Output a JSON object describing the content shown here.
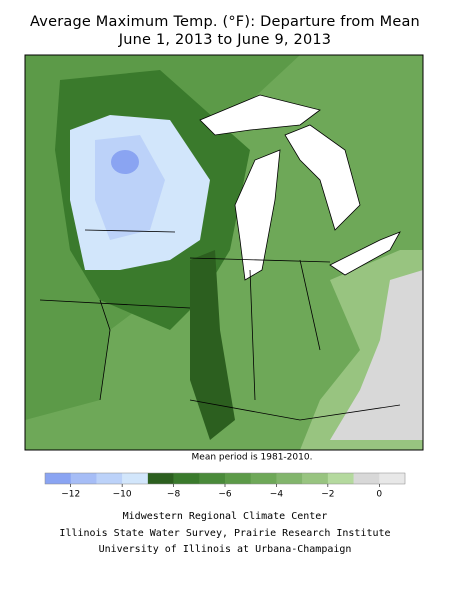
{
  "title": [
    "Average Maximum Temp. (°F): Departure from Mean",
    "June 1, 2013 to June 9, 2013"
  ],
  "note": "Mean period is 1981-2010.",
  "colorbar": {
    "range": [
      -13,
      1
    ],
    "colors": [
      "#8aa4f2",
      "#a6bdf6",
      "#bcd2f9",
      "#d2e6fb",
      "#2c5f1f",
      "#3a7a2c",
      "#4a8a3a",
      "#5c9a48",
      "#6ea858",
      "#82b56c",
      "#98c480",
      "#b4d99e",
      "#d8d8d8",
      "#e8e8e8"
    ],
    "ticks": [
      {
        "value": -12,
        "label": "−12"
      },
      {
        "value": -10,
        "label": "−10"
      },
      {
        "value": -8,
        "label": "−8"
      },
      {
        "value": -6,
        "label": "−6"
      },
      {
        "value": -4,
        "label": "−4"
      },
      {
        "value": -2,
        "label": "−2"
      },
      0
    ]
  },
  "credits": [
    "Midwestern Regional Climate Center",
    "Illinois State Water Survey, Prairie Research Institute",
    "University of Illinois at Urbana-Champaign"
  ]
}
